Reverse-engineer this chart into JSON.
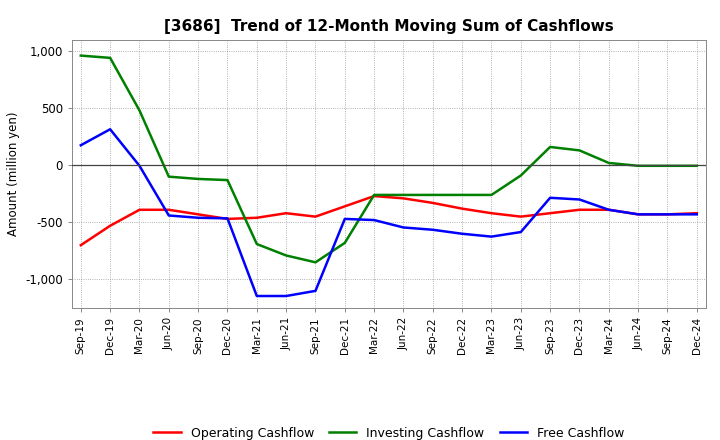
{
  "title": "[3686]  Trend of 12-Month Moving Sum of Cashflows",
  "ylabel": "Amount (million yen)",
  "x_labels": [
    "Sep-19",
    "Dec-19",
    "Mar-20",
    "Jun-20",
    "Sep-20",
    "Dec-20",
    "Mar-21",
    "Jun-21",
    "Sep-21",
    "Dec-21",
    "Mar-22",
    "Jun-22",
    "Sep-22",
    "Dec-22",
    "Mar-23",
    "Jun-23",
    "Sep-23",
    "Dec-23",
    "Mar-24",
    "Jun-24",
    "Sep-24",
    "Dec-24"
  ],
  "operating": [
    -700,
    -530,
    -390,
    -390,
    -430,
    -470,
    -460,
    -420,
    -450,
    -360,
    -270,
    -290,
    -330,
    -380,
    -420,
    -450,
    -420,
    -390,
    -390,
    -430,
    -430,
    -420
  ],
  "investing": [
    960,
    940,
    480,
    -100,
    -120,
    -130,
    -690,
    -790,
    -850,
    -680,
    -260,
    -260,
    -260,
    -260,
    -260,
    -90,
    160,
    130,
    20,
    -5,
    -5,
    -5
  ],
  "free": [
    175,
    315,
    -5,
    -440,
    -460,
    -465,
    -1145,
    -1145,
    -1100,
    -470,
    -480,
    -545,
    -565,
    -600,
    -625,
    -585,
    -285,
    -300,
    -390,
    -430,
    -430,
    -430
  ],
  "ylim": [
    -1250,
    1100
  ],
  "yticks": [
    -1000,
    -500,
    0,
    500,
    1000
  ],
  "ytick_labels": [
    "-1,000",
    "-500",
    "0",
    "500",
    "1,000"
  ],
  "operating_color": "#ff0000",
  "investing_color": "#008000",
  "free_color": "#0000ff",
  "background_color": "#ffffff",
  "grid_color": "#999999",
  "legend_labels": [
    "Operating Cashflow",
    "Investing Cashflow",
    "Free Cashflow"
  ]
}
